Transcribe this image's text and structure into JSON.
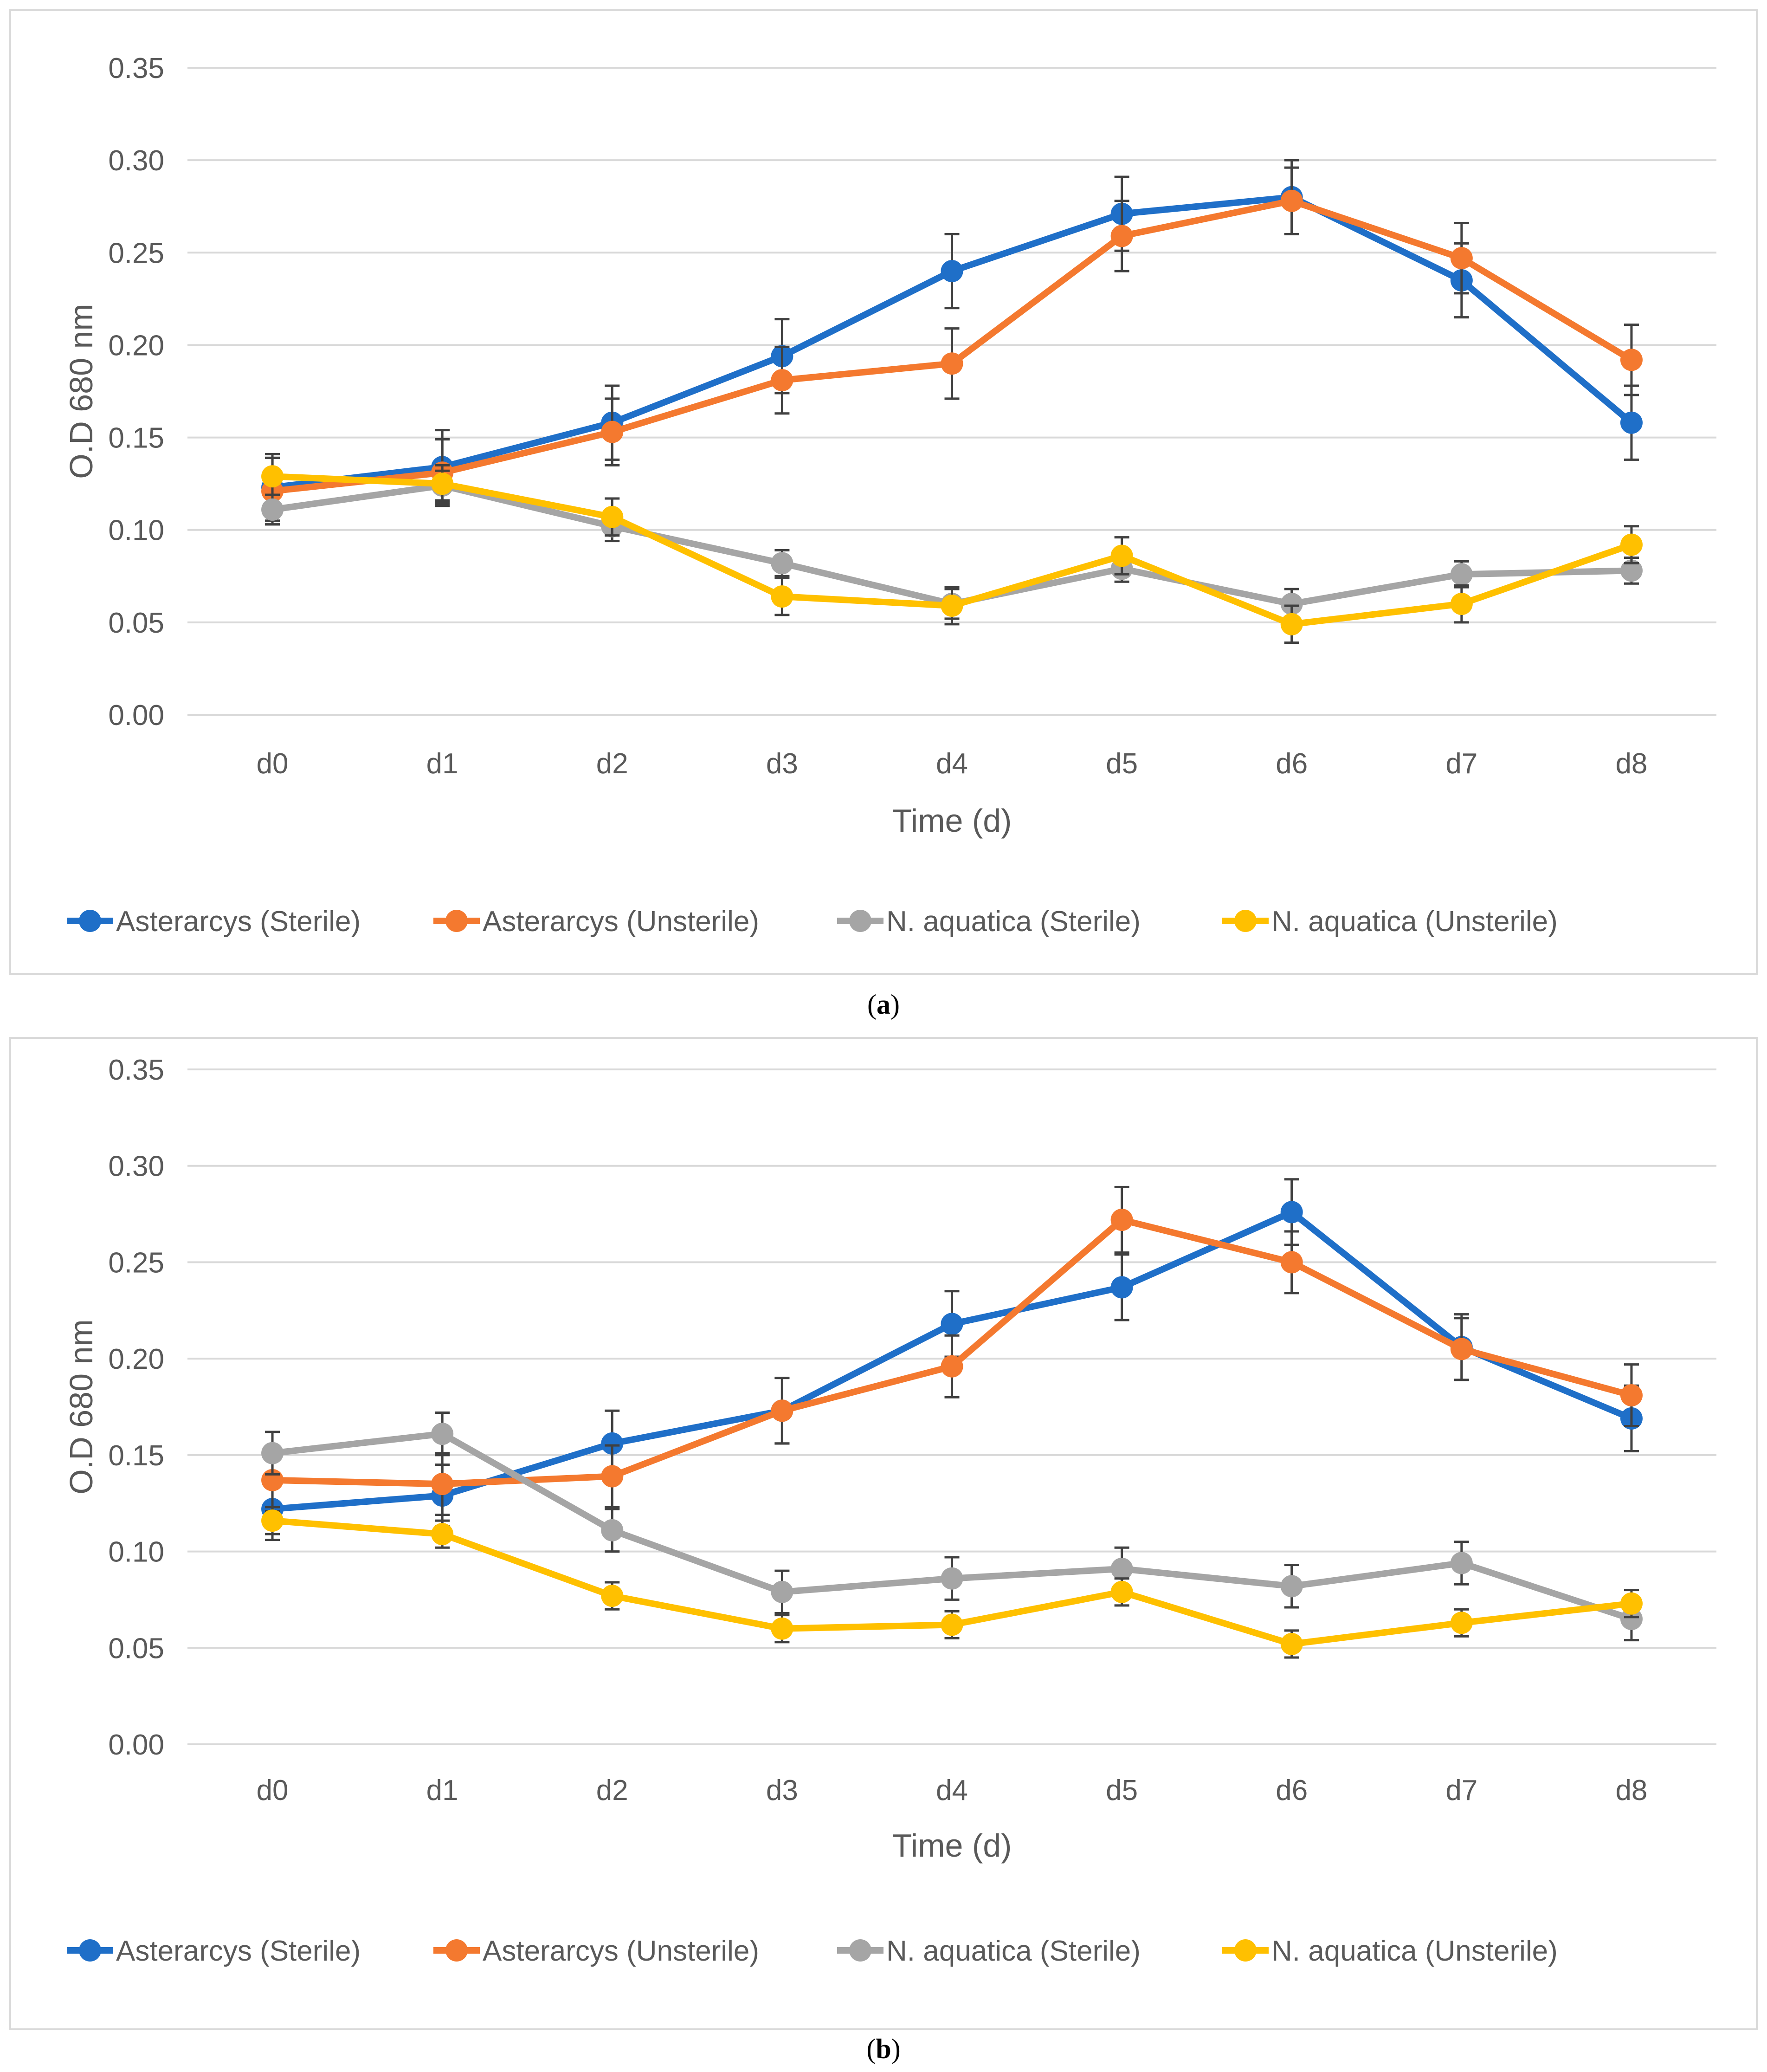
{
  "captions": {
    "a_letter": "a",
    "b_letter": "b",
    "open": "(",
    "close": ")"
  },
  "chart_data": [
    {
      "type": "line",
      "panel": "a",
      "title": "",
      "xlabel": "Time (d)",
      "ylabel": "O.D 680 nm",
      "ylim": [
        0,
        0.35
      ],
      "yticks": [
        "0.00",
        "0.05",
        "0.10",
        "0.15",
        "0.20",
        "0.25",
        "0.30",
        "0.35"
      ],
      "grid": true,
      "legend": "bottom",
      "categories": [
        "d0",
        "d1",
        "d2",
        "d3",
        "d4",
        "d5",
        "d6",
        "d7",
        "d8"
      ],
      "series": [
        {
          "name": "Asterarcys (Sterile)",
          "color": "#1f6fc8",
          "values": [
            0.123,
            0.134,
            0.158,
            0.194,
            0.24,
            0.271,
            0.28,
            0.235,
            0.158
          ],
          "error": [
            0.018,
            0.02,
            0.02,
            0.02,
            0.02,
            0.02,
            0.02,
            0.02,
            0.02
          ]
        },
        {
          "name": "Asterarcys (Unsterile)",
          "color": "#f4792f",
          "values": [
            0.121,
            0.131,
            0.153,
            0.181,
            0.19,
            0.259,
            0.278,
            0.247,
            0.192
          ],
          "error": [
            0.018,
            0.018,
            0.018,
            0.018,
            0.019,
            0.019,
            0.018,
            0.019,
            0.019
          ]
        },
        {
          "name": "N. aquatica (Sterile)",
          "color": "#a5a5a5",
          "values": [
            0.111,
            0.124,
            0.102,
            0.082,
            0.06,
            0.079,
            0.06,
            0.076,
            0.078
          ],
          "error": [
            0.008,
            0.008,
            0.008,
            0.007,
            0.008,
            0.007,
            0.008,
            0.007,
            0.007
          ]
        },
        {
          "name": "N. aquatica (Unsterile)",
          "color": "#ffc000",
          "values": [
            0.129,
            0.125,
            0.107,
            0.064,
            0.059,
            0.086,
            0.049,
            0.06,
            0.092
          ],
          "error": [
            0.01,
            0.01,
            0.01,
            0.01,
            0.01,
            0.01,
            0.01,
            0.01,
            0.01
          ]
        }
      ]
    },
    {
      "type": "line",
      "panel": "b",
      "title": "",
      "xlabel": "Time (d)",
      "ylabel": "O.D 680 nm",
      "ylim": [
        0,
        0.35
      ],
      "yticks": [
        "0.00",
        "0.05",
        "0.10",
        "0.15",
        "0.20",
        "0.25",
        "0.30",
        "0.35"
      ],
      "grid": true,
      "legend": "bottom",
      "categories": [
        "d0",
        "d1",
        "d2",
        "d3",
        "d4",
        "d5",
        "d6",
        "d7",
        "d8"
      ],
      "series": [
        {
          "name": "Asterarcys (Sterile)",
          "color": "#1f6fc8",
          "values": [
            0.122,
            0.129,
            0.156,
            0.173,
            0.218,
            0.237,
            0.276,
            0.206,
            0.169
          ],
          "error": [
            0.016,
            0.016,
            0.017,
            0.017,
            0.017,
            0.017,
            0.017,
            0.017,
            0.017
          ]
        },
        {
          "name": "Asterarcys (Unsterile)",
          "color": "#f4792f",
          "values": [
            0.137,
            0.135,
            0.139,
            0.173,
            0.196,
            0.272,
            0.25,
            0.205,
            0.181
          ],
          "error": [
            0.016,
            0.016,
            0.016,
            0.017,
            0.016,
            0.017,
            0.016,
            0.016,
            0.016
          ]
        },
        {
          "name": "N. aquatica (Sterile)",
          "color": "#a5a5a5",
          "values": [
            0.151,
            0.161,
            0.111,
            0.079,
            0.086,
            0.091,
            0.082,
            0.094,
            0.065
          ],
          "error": [
            0.011,
            0.011,
            0.011,
            0.011,
            0.011,
            0.011,
            0.011,
            0.011,
            0.011
          ]
        },
        {
          "name": "N. aquatica (Unsterile)",
          "color": "#ffc000",
          "values": [
            0.116,
            0.109,
            0.077,
            0.06,
            0.062,
            0.079,
            0.052,
            0.063,
            0.073
          ],
          "error": [
            0.007,
            0.007,
            0.007,
            0.007,
            0.007,
            0.007,
            0.007,
            0.007,
            0.007
          ]
        }
      ]
    }
  ]
}
